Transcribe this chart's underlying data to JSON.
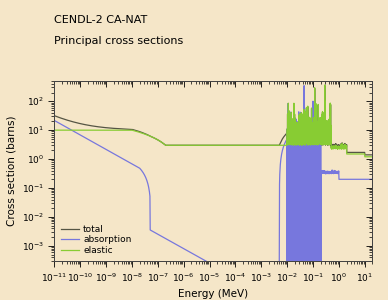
{
  "title_line1": "CENDL-2 CA-NAT",
  "title_line2": "Principal cross sections",
  "xlabel": "Energy (MeV)",
  "ylabel": "Cross section (barns)",
  "bg_color": "#f5e6c8",
  "plot_bg_color": "#f5e6c8",
  "xmin": 1e-11,
  "xmax": 20.0,
  "ymin": 0.0003,
  "ymax": 500.0,
  "legend_labels": [
    "total",
    "absorption",
    "elastic"
  ],
  "total_color": "#555544",
  "absorption_color": "#7777dd",
  "elastic_color": "#88cc33"
}
